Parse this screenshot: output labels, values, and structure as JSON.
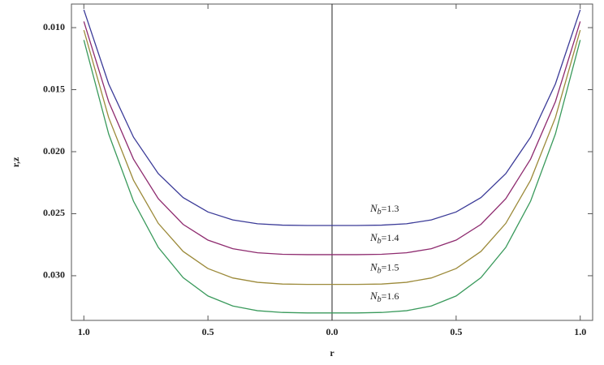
{
  "chart_data": {
    "type": "line",
    "xlabel": "r",
    "ylabel": "r,z",
    "x": [
      -1.0,
      -0.9,
      -0.8,
      -0.7,
      -0.6,
      -0.5,
      -0.4,
      -0.3,
      -0.2,
      -0.1,
      0.0,
      0.1,
      0.2,
      0.3,
      0.4,
      0.5,
      0.6,
      0.7,
      0.8,
      0.9,
      1.0
    ],
    "xlim": [
      -1.05,
      1.05
    ],
    "xticks": [
      {
        "value": -1,
        "label": "1.0"
      },
      {
        "value": -0.5,
        "label": "0.5"
      },
      {
        "value": 0,
        "label": "0.0"
      },
      {
        "value": 0.5,
        "label": "0.5"
      },
      {
        "value": 1,
        "label": "1.0"
      }
    ],
    "ylim": [
      0.0336,
      0.0081
    ],
    "yticks": [
      {
        "value": 0.01,
        "label": "0.010"
      },
      {
        "value": 0.015,
        "label": "0.015"
      },
      {
        "value": 0.02,
        "label": "0.020"
      },
      {
        "value": 0.025,
        "label": "0.025"
      },
      {
        "value": 0.03,
        "label": "0.030"
      }
    ],
    "series": [
      {
        "label": {
          "symbol": "N",
          "sub": "b",
          "value": "=1.3"
        },
        "color": "#3b3b98",
        "values": [
          0.00856,
          0.01454,
          0.01883,
          0.02177,
          0.0237,
          0.02486,
          0.0255,
          0.02581,
          0.02592,
          0.02595,
          0.02595,
          0.02595,
          0.02592,
          0.02581,
          0.0255,
          0.02486,
          0.0237,
          0.02177,
          0.01883,
          0.01454,
          0.00856
        ]
      },
      {
        "label": {
          "symbol": "N",
          "sub": "b",
          "value": "=1.4"
        },
        "color": "#8e2b6f",
        "values": [
          0.0095,
          0.01597,
          0.0206,
          0.02379,
          0.02586,
          0.02713,
          0.02782,
          0.02815,
          0.02827,
          0.0283,
          0.0283,
          0.0283,
          0.02827,
          0.02815,
          0.02782,
          0.02713,
          0.02586,
          0.02379,
          0.0206,
          0.01597,
          0.0095
        ]
      },
      {
        "label": {
          "symbol": "N",
          "sub": "b",
          "value": "=1.5"
        },
        "color": "#9c8a3a",
        "values": [
          0.0102,
          0.01725,
          0.0223,
          0.02578,
          0.02804,
          0.02942,
          0.03018,
          0.03053,
          0.03067,
          0.0307,
          0.0307,
          0.0307,
          0.03067,
          0.03053,
          0.03018,
          0.02942,
          0.02804,
          0.02578,
          0.0223,
          0.01725,
          0.0102
        ]
      },
      {
        "label": {
          "symbol": "N",
          "sub": "b",
          "value": "=1.6"
        },
        "color": "#3a9a5c",
        "values": [
          0.011,
          0.01857,
          0.02399,
          0.02772,
          0.03015,
          0.03163,
          0.03244,
          0.03282,
          0.03296,
          0.033,
          0.033,
          0.033,
          0.03296,
          0.03282,
          0.03244,
          0.03163,
          0.03015,
          0.02772,
          0.02399,
          0.01857,
          0.011
        ]
      }
    ]
  }
}
